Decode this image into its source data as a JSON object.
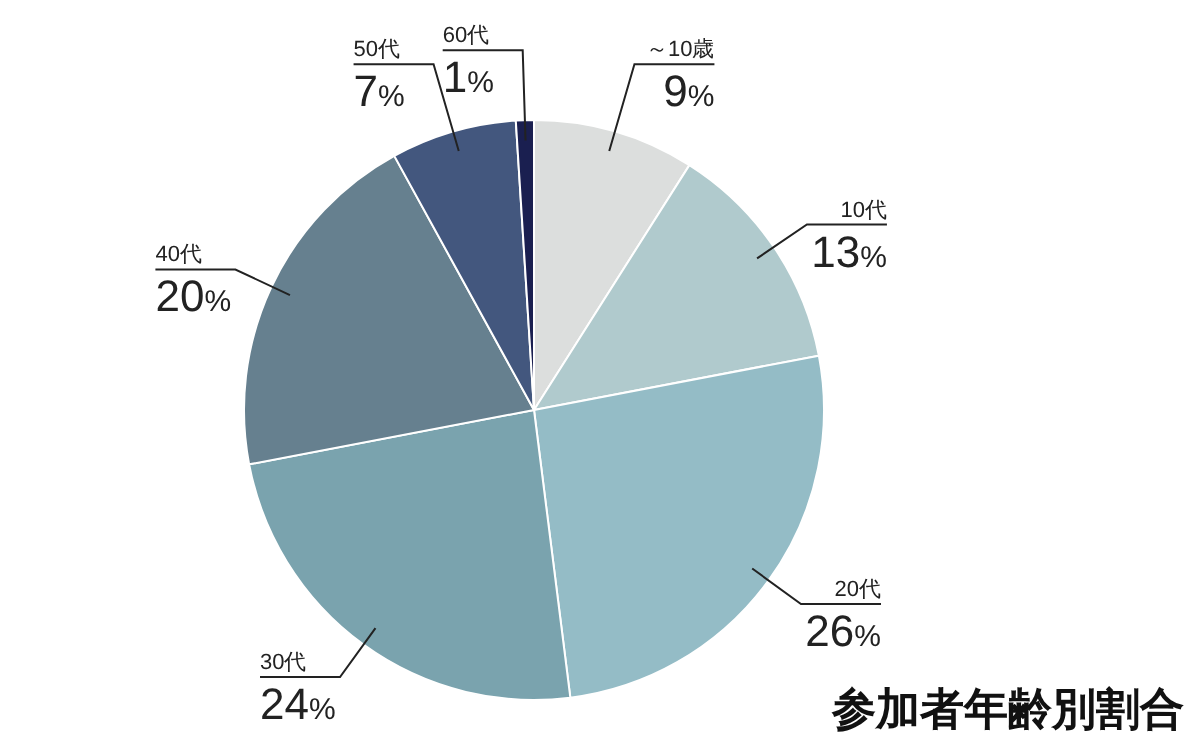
{
  "chart_data": {
    "type": "pie",
    "title": "参加者年齢別割合",
    "categories": [
      "～10歳",
      "10代",
      "20代",
      "30代",
      "40代",
      "50代",
      "60代"
    ],
    "values": [
      9,
      13,
      26,
      24,
      20,
      7,
      1
    ],
    "colors": [
      "#dcdedd",
      "#b0cacd",
      "#94bcc6",
      "#7aa3ae",
      "#66808f",
      "#43577e",
      "#1a1f50"
    ],
    "value_labels": [
      "9%",
      "13%",
      "26%",
      "24%",
      "20%",
      "7%",
      "1%"
    ]
  }
}
